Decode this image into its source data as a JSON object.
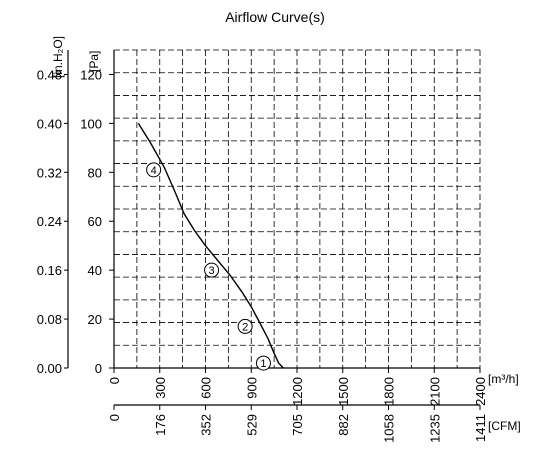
{
  "chart_data": {
    "type": "line",
    "title": "Airflow Curve(s)",
    "x_axes": [
      {
        "label": "[m³/h]",
        "ticks": [
          "0",
          "300",
          "600",
          "900",
          "1200",
          "1500",
          "1800",
          "2100",
          "2400"
        ],
        "range": [
          0,
          2400
        ]
      },
      {
        "label": "[CFM]",
        "ticks": [
          "0",
          "176",
          "352",
          "529",
          "705",
          "882",
          "1058",
          "1235",
          "1411"
        ],
        "range": [
          0,
          1411
        ]
      }
    ],
    "y_axes": [
      {
        "label": "[Pa]",
        "ticks": [
          "0",
          "20",
          "40",
          "60",
          "80",
          "100",
          "120"
        ],
        "range": [
          0,
          130
        ]
      },
      {
        "label": "[in.H₂O]",
        "ticks": [
          "0.00",
          "0.08",
          "0.16",
          "0.24",
          "0.32",
          "0.40",
          "0.48"
        ],
        "range": [
          0,
          0.52
        ]
      }
    ],
    "grid": true,
    "series": [
      {
        "x": [
          160,
          240,
          330,
          400,
          460,
          530,
          600,
          680,
          760,
          840,
          900,
          960,
          1010,
          1050,
          1080,
          1110
        ],
        "y": [
          100,
          92,
          82,
          72,
          63,
          56,
          50,
          44,
          38,
          31,
          25,
          18,
          12,
          6,
          2,
          0
        ]
      }
    ],
    "annotations": [
      {
        "text": "④",
        "x": 260,
        "y": 81
      },
      {
        "text": "③",
        "x": 640,
        "y": 40
      },
      {
        "text": "②",
        "x": 860,
        "y": 17
      },
      {
        "text": "①",
        "x": 980,
        "y": 2
      }
    ]
  }
}
